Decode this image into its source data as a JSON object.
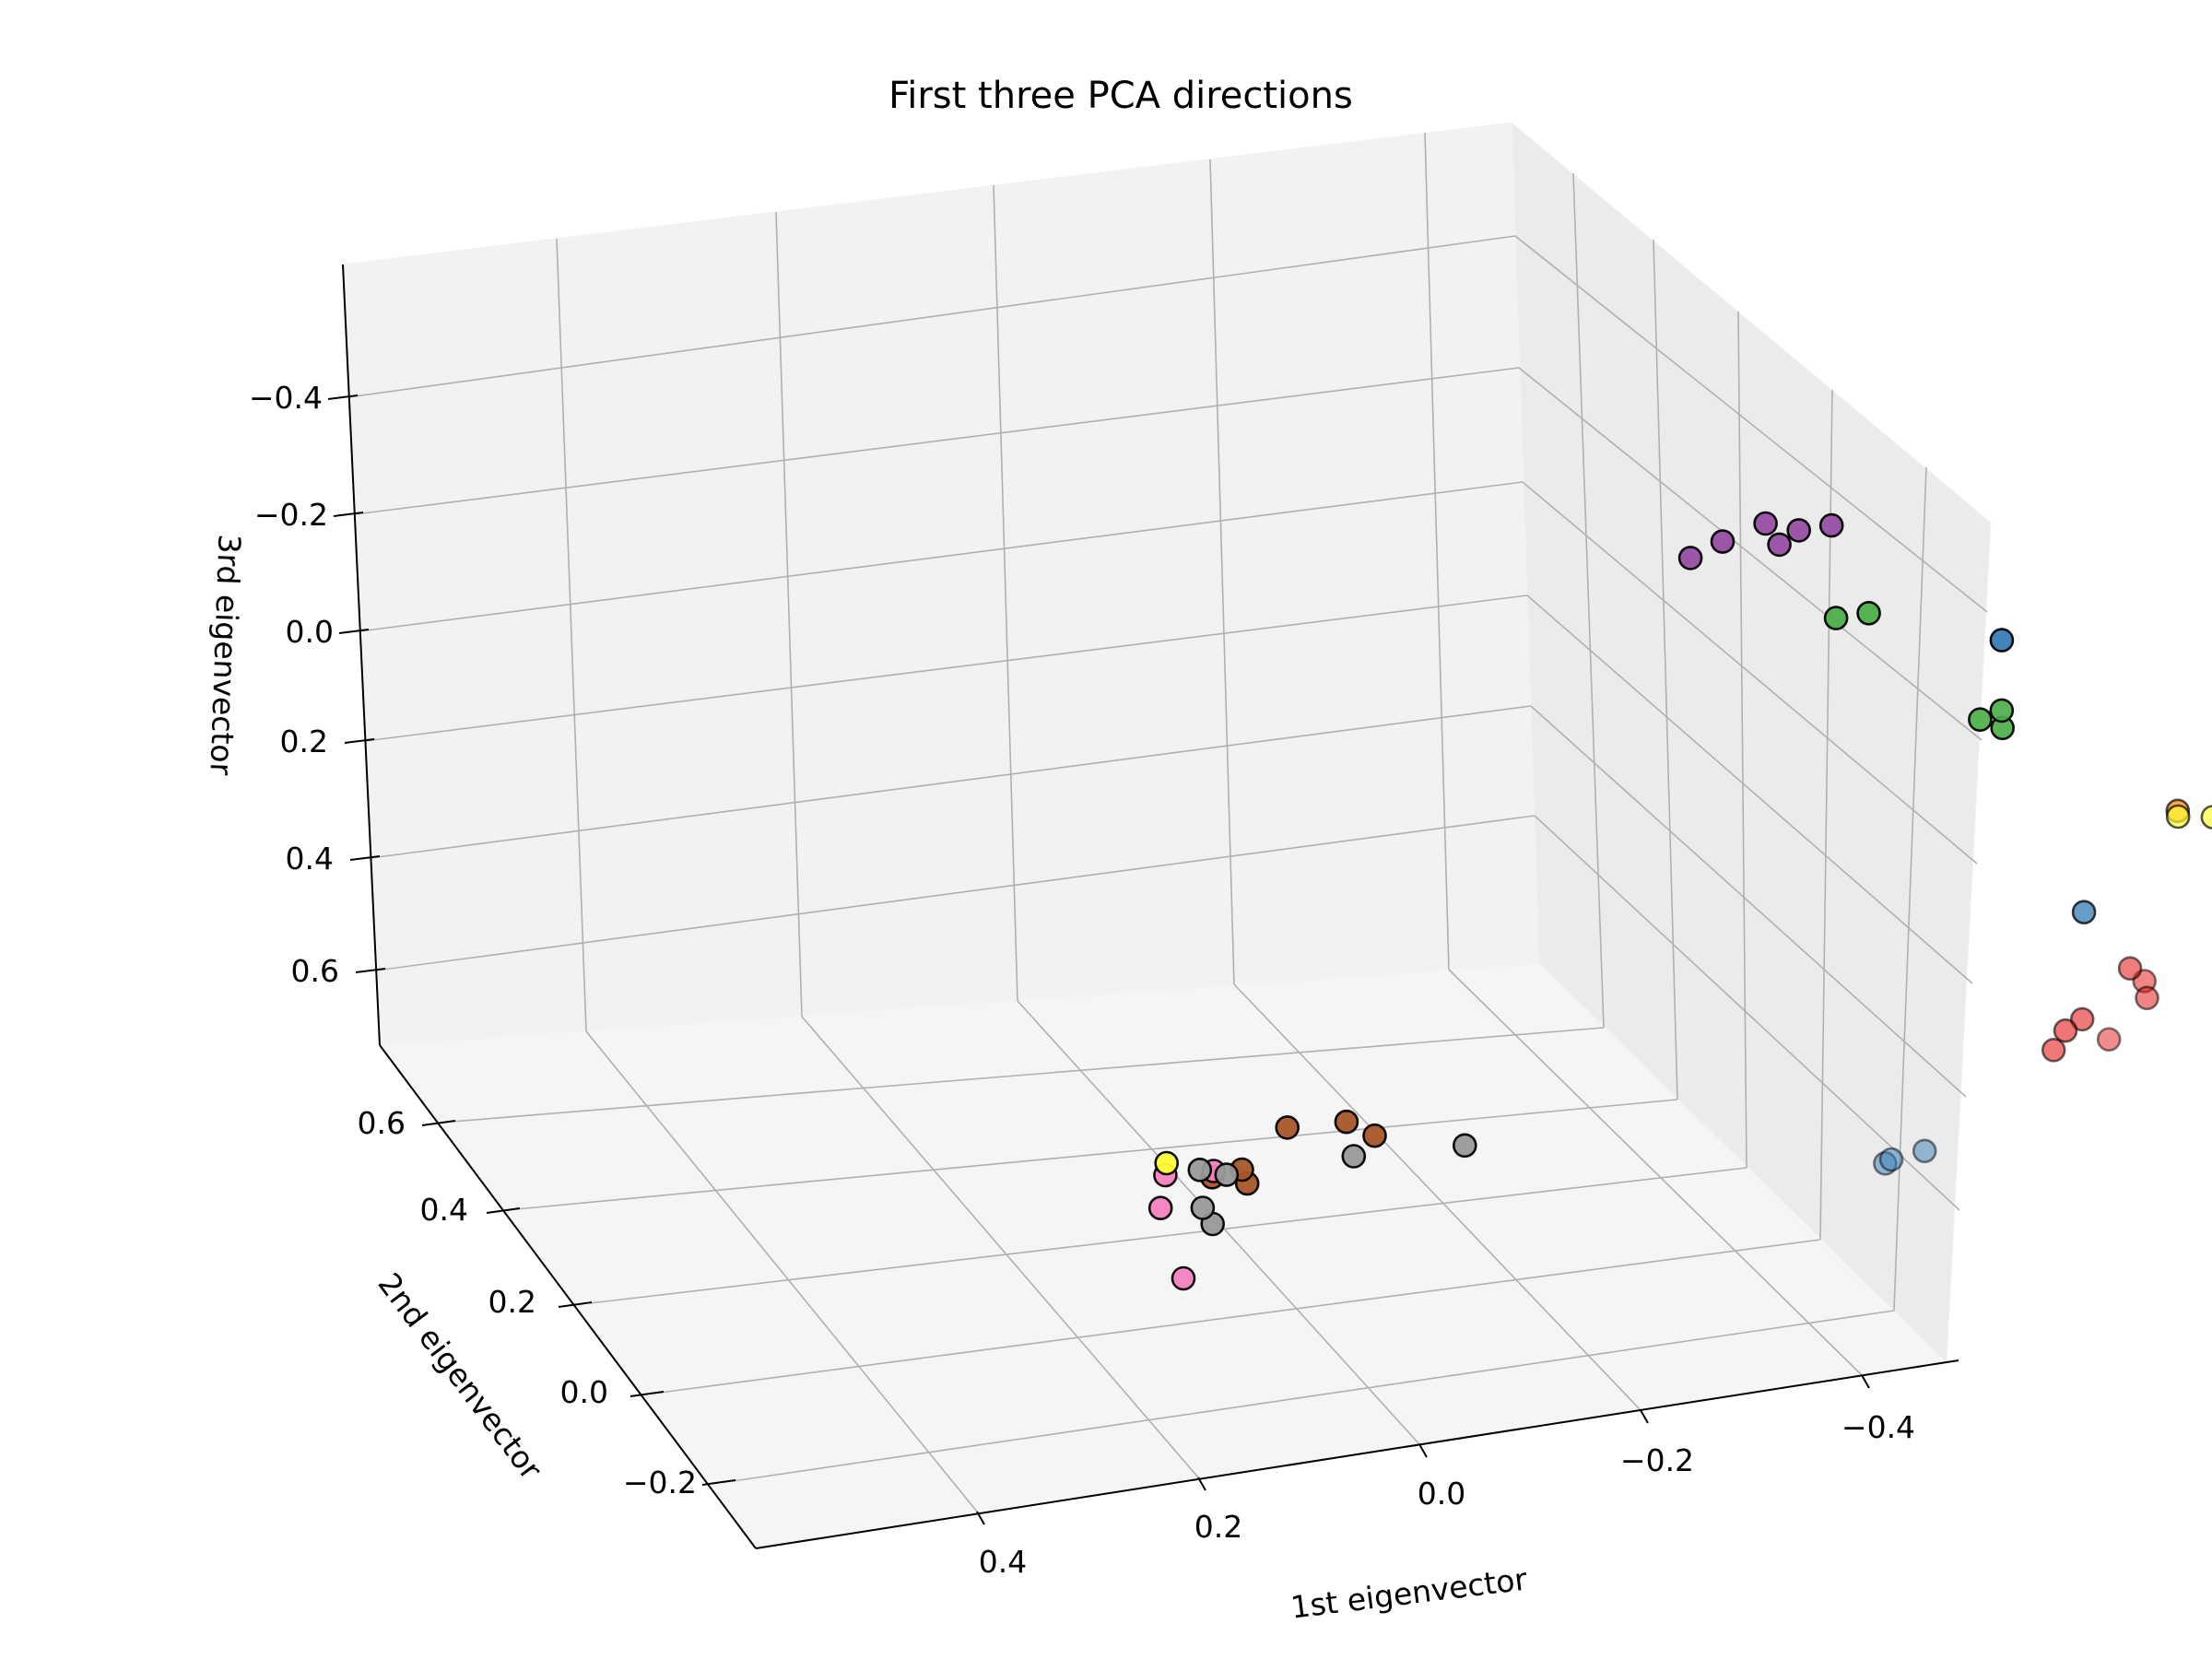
{
  "chart_data": {
    "type": "scatter",
    "title": "First three PCA directions",
    "xlabel": "1st eigenvector",
    "ylabel": "2nd eigenvector",
    "zlabel": "3rd eigenvector",
    "projection": "3d",
    "xlim": [
      -0.5,
      0.55
    ],
    "ylim": [
      -0.3,
      0.7
    ],
    "zlim": [
      -0.6,
      0.8
    ],
    "z_axis_inverted": true,
    "grid": true,
    "x_ticks": [
      "0.4",
      "0.2",
      "0.0",
      "−0.2",
      "−0.4"
    ],
    "y_ticks": [
      "0.6",
      "0.4",
      "0.2",
      "0.0",
      "−0.2"
    ],
    "z_ticks": [
      "−0.4",
      "−0.2",
      "0.0",
      "0.2",
      "0.4",
      "0.6"
    ],
    "point_colors": [
      "#e41a1c",
      "#377eb8",
      "#4daf4a",
      "#984ea3",
      "#ff7f00",
      "#ffff33",
      "#a65628",
      "#f781bf",
      "#999999"
    ],
    "points": [
      {
        "x": -0.42,
        "y": 0.35,
        "z": 0.48,
        "c": 0
      },
      {
        "x": -0.4,
        "y": 0.36,
        "z": 0.43,
        "c": 0
      },
      {
        "x": -0.43,
        "y": 0.33,
        "z": 0.44,
        "c": 0
      },
      {
        "x": -0.43,
        "y": 0.27,
        "z": 0.5,
        "c": 0
      },
      {
        "x": -0.36,
        "y": 0.35,
        "z": 0.5,
        "c": 0
      },
      {
        "x": -0.35,
        "y": 0.32,
        "z": 0.53,
        "c": 0
      },
      {
        "x": -0.35,
        "y": 0.34,
        "z": 0.51,
        "c": 0
      },
      {
        "x": -0.25,
        "y": 0.55,
        "z": 0.42,
        "c": 1
      },
      {
        "x": -0.42,
        "y": -0.01,
        "z": 0.5,
        "c": 1
      },
      {
        "x": -0.43,
        "y": -0.08,
        "z": 0.47,
        "c": 1
      },
      {
        "x": -0.43,
        "y": -0.09,
        "z": 0.47,
        "c": 1
      },
      {
        "x": -0.1,
        "y": 0.7,
        "z": 0.01,
        "c": 1
      },
      {
        "x": -0.1,
        "y": 0.66,
        "z": 0.12,
        "c": 2
      },
      {
        "x": -0.12,
        "y": 0.66,
        "z": 0.14,
        "c": 2
      },
      {
        "x": -0.12,
        "y": 0.66,
        "z": 0.11,
        "c": 2
      },
      {
        "x": 0.05,
        "y": 0.7,
        "z": -0.07,
        "c": 2
      },
      {
        "x": 0.02,
        "y": 0.7,
        "z": -0.07,
        "c": 2
      },
      {
        "x": 0.18,
        "y": 0.7,
        "z": -0.21,
        "c": 3
      },
      {
        "x": 0.15,
        "y": 0.7,
        "z": -0.23,
        "c": 3
      },
      {
        "x": 0.11,
        "y": 0.7,
        "z": -0.25,
        "c": 3
      },
      {
        "x": 0.11,
        "y": 0.72,
        "z": -0.2,
        "c": 3
      },
      {
        "x": 0.08,
        "y": 0.7,
        "z": -0.23,
        "c": 3
      },
      {
        "x": 0.05,
        "y": 0.7,
        "z": -0.23,
        "c": 3
      },
      {
        "x": -0.47,
        "y": 0.66,
        "z": -0.2,
        "c": 4
      },
      {
        "x": -0.46,
        "y": 0.66,
        "z": -0.25,
        "c": 4
      },
      {
        "x": -0.46,
        "y": 0.66,
        "z": -0.21,
        "c": 4
      },
      {
        "x": -0.34,
        "y": 0.55,
        "z": 0.27,
        "c": 4
      },
      {
        "x": -0.44,
        "y": 0.59,
        "z": 0.28,
        "c": 4
      },
      {
        "x": -0.47,
        "y": 0.66,
        "z": 0.01,
        "c": 5
      },
      {
        "x": -0.46,
        "y": 0.66,
        "z": 0.02,
        "c": 5
      },
      {
        "x": -0.36,
        "y": 0.57,
        "z": 0.3,
        "c": 5
      },
      {
        "x": -0.34,
        "y": 0.55,
        "z": 0.28,
        "c": 5
      },
      {
        "x": 0.51,
        "y": 0.4,
        "z": 0.54,
        "c": 5
      },
      {
        "x": 0.5,
        "y": 0.38,
        "z": 0.55,
        "c": 7
      },
      {
        "x": 0.5,
        "y": 0.37,
        "z": 0.6,
        "c": 7
      },
      {
        "x": 0.45,
        "y": 0.37,
        "z": 0.55,
        "c": 7
      },
      {
        "x": 0.43,
        "y": 0.28,
        "z": 0.68,
        "c": 7
      },
      {
        "x": 0.44,
        "y": 0.35,
        "z": 0.55,
        "c": 6
      },
      {
        "x": 0.43,
        "y": 0.38,
        "z": 0.56,
        "c": 6
      },
      {
        "x": 0.42,
        "y": 0.37,
        "z": 0.58,
        "c": 6
      },
      {
        "x": 0.41,
        "y": 0.42,
        "z": 0.52,
        "c": 6
      },
      {
        "x": 0.35,
        "y": 0.41,
        "z": 0.52,
        "c": 6
      },
      {
        "x": 0.29,
        "y": 0.35,
        "z": 0.52,
        "c": 6
      },
      {
        "x": 0.48,
        "y": 0.4,
        "z": 0.56,
        "c": 8
      },
      {
        "x": 0.45,
        "y": 0.39,
        "z": 0.57,
        "c": 8
      },
      {
        "x": 0.45,
        "y": 0.35,
        "z": 0.6,
        "c": 8
      },
      {
        "x": 0.43,
        "y": 0.33,
        "z": 0.62,
        "c": 8
      },
      {
        "x": 0.31,
        "y": 0.35,
        "z": 0.55,
        "c": 8
      },
      {
        "x": 0.22,
        "y": 0.37,
        "z": 0.57,
        "c": 8
      }
    ]
  }
}
